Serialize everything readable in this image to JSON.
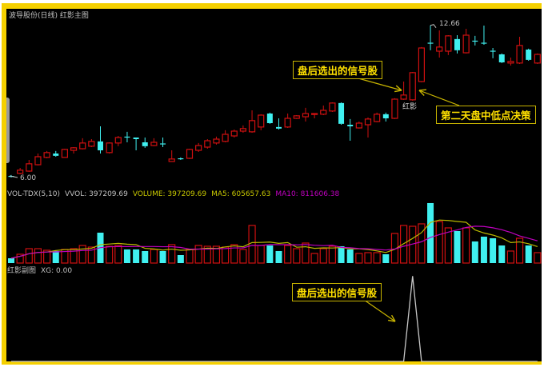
{
  "header": {
    "title": "波导股份(日线) 红影主图"
  },
  "volume_header": {
    "name": "VOL-TDX(5,10)",
    "vvol": "VVOL: 397209.69",
    "volume": "VOLUME: 397209.69",
    "ma5": "MA5: 605657.63",
    "ma10": "MA10: 811606.38"
  },
  "xg_header": {
    "name": "红影副图",
    "value": "XG: 0.00"
  },
  "annotations": {
    "signal_top": "盘后选出的信号股",
    "decision": "第二天盘中低点决策",
    "signal_bottom": "盘后选出的信号股",
    "signal_mark": "红影",
    "high_label": "12.66",
    "low_label": "6.00"
  },
  "colors": {
    "up": "#d01010",
    "down": "#40f0f0",
    "ma5": "#b8b800",
    "ma10": "#c000c0",
    "note": "#ffe000",
    "border": "#f5d000",
    "xg": "#c8c8c8"
  },
  "chart_data": [
    {
      "type": "candlestick",
      "title": "波导股份(日线) 红影主图",
      "ylim": [
        5.44,
        13.07
      ],
      "ohlc": [
        [
          6.07,
          6.11,
          6.0,
          6.04
        ],
        [
          6.18,
          6.42,
          6.14,
          6.32
        ],
        [
          6.28,
          6.77,
          6.25,
          6.6
        ],
        [
          6.56,
          7.05,
          6.53,
          6.91
        ],
        [
          6.88,
          7.16,
          6.84,
          7.09
        ],
        [
          7.05,
          7.16,
          6.91,
          6.95
        ],
        [
          6.88,
          7.26,
          6.88,
          7.23
        ],
        [
          7.19,
          7.33,
          7.05,
          7.3
        ],
        [
          7.26,
          7.72,
          7.23,
          7.51
        ],
        [
          7.37,
          7.68,
          7.33,
          7.58
        ],
        [
          7.58,
          8.24,
          7.05,
          7.19
        ],
        [
          7.09,
          7.54,
          7.05,
          7.51
        ],
        [
          7.51,
          7.82,
          7.37,
          7.75
        ],
        [
          7.79,
          8.0,
          7.54,
          7.75
        ],
        [
          7.75,
          7.75,
          7.19,
          7.68
        ],
        [
          7.54,
          7.75,
          7.3,
          7.37
        ],
        [
          7.4,
          7.72,
          7.37,
          7.54
        ],
        [
          7.49,
          7.75,
          7.33,
          7.47
        ],
        [
          6.7,
          7.19,
          6.7,
          6.81
        ],
        [
          6.84,
          6.88,
          6.77,
          6.81
        ],
        [
          6.84,
          7.26,
          6.81,
          7.23
        ],
        [
          7.19,
          7.51,
          7.12,
          7.4
        ],
        [
          7.33,
          7.68,
          7.26,
          7.61
        ],
        [
          7.51,
          7.79,
          7.44,
          7.68
        ],
        [
          7.58,
          8.07,
          7.54,
          7.89
        ],
        [
          7.82,
          8.1,
          7.75,
          8.03
        ],
        [
          8.03,
          8.28,
          7.96,
          8.14
        ],
        [
          8.0,
          8.94,
          7.96,
          8.49
        ],
        [
          8.21,
          8.77,
          8.07,
          8.73
        ],
        [
          8.8,
          8.84,
          8.35,
          8.38
        ],
        [
          8.21,
          8.59,
          8.1,
          8.14
        ],
        [
          8.21,
          8.8,
          8.17,
          8.59
        ],
        [
          8.59,
          8.73,
          8.56,
          8.7
        ],
        [
          8.66,
          9.05,
          8.45,
          8.8
        ],
        [
          8.77,
          8.8,
          8.59,
          8.8
        ],
        [
          8.77,
          9.15,
          8.73,
          8.94
        ],
        [
          8.91,
          9.29,
          8.87,
          9.26
        ],
        [
          9.26,
          9.29,
          8.31,
          8.35
        ],
        [
          8.31,
          8.56,
          7.61,
          8.24
        ],
        [
          8.17,
          8.45,
          8.14,
          8.38
        ],
        [
          8.31,
          8.63,
          7.75,
          8.56
        ],
        [
          8.45,
          8.84,
          8.42,
          8.77
        ],
        [
          8.77,
          8.84,
          8.45,
          8.59
        ],
        [
          8.59,
          9.47,
          8.56,
          9.43
        ],
        [
          9.43,
          10.2,
          9.4,
          9.61
        ],
        [
          9.4,
          10.62,
          9.36,
          10.59
        ],
        [
          10.2,
          11.71,
          10.17,
          11.67
        ],
        [
          11.9,
          12.66,
          11.57,
          11.88
        ],
        [
          11.53,
          12.44,
          11.25,
          11.71
        ],
        [
          11.53,
          12.23,
          11.36,
          12.2
        ],
        [
          12.06,
          12.23,
          11.43,
          11.57
        ],
        [
          11.46,
          12.51,
          11.43,
          12.23
        ],
        [
          11.99,
          12.2,
          11.78,
          11.97
        ],
        [
          11.9,
          12.65,
          11.81,
          11.88
        ],
        [
          11.55,
          11.67,
          11.22,
          11.53
        ],
        [
          11.39,
          11.43,
          11.01,
          11.04
        ],
        [
          11.01,
          11.25,
          10.9,
          11.08
        ],
        [
          11.01,
          12.16,
          10.97,
          11.78
        ],
        [
          11.6,
          11.64,
          11.11,
          11.15
        ],
        [
          11.01,
          11.43,
          10.97,
          11.39
        ]
      ],
      "signal_index": 45
    },
    {
      "type": "bar",
      "title": "VOL-TDX(5,10)",
      "ylim": [
        0,
        2470000
      ],
      "values": [
        183000,
        336000,
        549000,
        549000,
        488000,
        458000,
        519000,
        549000,
        671000,
        610000,
        1159000,
        641000,
        671000,
        519000,
        519000,
        458000,
        519000,
        458000,
        702000,
        305000,
        519000,
        671000,
        641000,
        641000,
        610000,
        702000,
        519000,
        1434000,
        671000,
        671000,
        458000,
        671000,
        549000,
        763000,
        366000,
        549000,
        641000,
        641000,
        519000,
        366000,
        397000,
        397000,
        336000,
        1129000,
        1434000,
        1403000,
        1495000,
        2288000,
        1586000,
        1342000,
        1220000,
        1342000,
        824000,
        1007000,
        946000,
        671000,
        458000,
        946000,
        671000,
        397209.69
      ],
      "series": [
        {
          "name": "MA5",
          "period": 5
        },
        {
          "name": "MA10",
          "period": 10
        }
      ]
    },
    {
      "type": "line",
      "title": "红影副图",
      "ylim": [
        0,
        1.05
      ],
      "series": [
        {
          "name": "XG",
          "values": [
            0,
            0,
            0,
            0,
            0,
            0,
            0,
            0,
            0,
            0,
            0,
            0,
            0,
            0,
            0,
            0,
            0,
            0,
            0,
            0,
            0,
            0,
            0,
            0,
            0,
            0,
            0,
            0,
            0,
            0,
            0,
            0,
            0,
            0,
            0,
            0,
            0,
            0,
            0,
            0,
            0,
            0,
            0,
            0,
            0,
            1,
            0,
            0,
            0,
            0,
            0,
            0,
            0,
            0,
            0,
            0,
            0,
            0,
            0,
            0
          ]
        }
      ]
    }
  ]
}
